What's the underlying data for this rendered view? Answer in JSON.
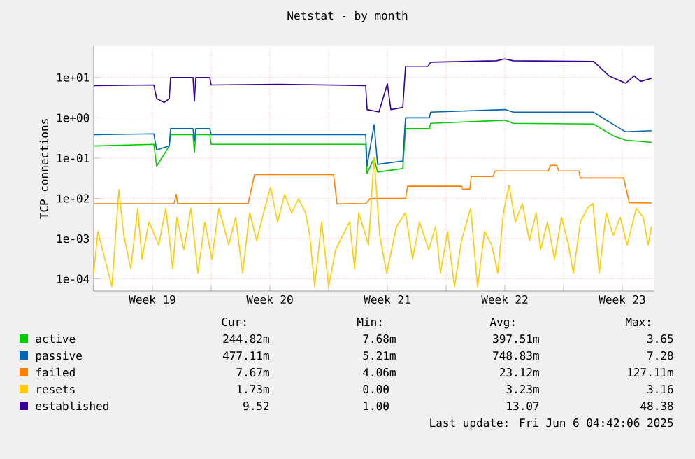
{
  "chart_data": {
    "type": "line",
    "title": "Netstat - by month",
    "ylabel": "TCP connections",
    "log": "y",
    "grid": true,
    "legend": "bottom",
    "marker": "none",
    "line_style": "solid",
    "xlim": [
      "2025-05-05T00:00",
      "2025-06-07T10:00"
    ],
    "ylim": [
      5e-05,
      60
    ],
    "xticks": [
      {
        "value": "2025-05-05T00:00",
        "label": null
      },
      {
        "value": "2025-05-08T12:00",
        "label": "Week 19"
      },
      {
        "value": "2025-05-12T00:00",
        "label": null
      },
      {
        "value": "2025-05-15T12:00",
        "label": "Week 20"
      },
      {
        "value": "2025-05-19T00:00",
        "label": null
      },
      {
        "value": "2025-05-22T12:00",
        "label": "Week 21"
      },
      {
        "value": "2025-05-26T00:00",
        "label": null
      },
      {
        "value": "2025-05-29T12:00",
        "label": "Week 22"
      },
      {
        "value": "2025-06-02T00:00",
        "label": null
      },
      {
        "value": "2025-06-05T12:00",
        "label": "Week 23"
      }
    ],
    "yticks": [
      {
        "value": 0.0001,
        "label": "1e-04"
      },
      {
        "value": 0.001,
        "label": "1e-03"
      },
      {
        "value": 0.01,
        "label": "1e-02"
      },
      {
        "value": 0.1,
        "label": "1e-01"
      },
      {
        "value": 1,
        "label": "1e+00"
      },
      {
        "value": 10,
        "label": "1e+01"
      }
    ],
    "series": [
      {
        "name": "active",
        "color": "#00cc00",
        "x": [
          "2025-05-05T00:00",
          "2025-05-08T14:00",
          "2025-05-08T18:00",
          "2025-05-09T12:00",
          "2025-05-09T14:00",
          "2025-05-10T22:00",
          "2025-05-11T00:00",
          "2025-05-11T02:00",
          "2025-05-11T22:00",
          "2025-05-12T00:00",
          "2025-05-21T05:00",
          "2025-05-21T07:00",
          "2025-05-21T17:00",
          "2025-05-21T22:00",
          "2025-05-23T10:00",
          "2025-05-23T14:00",
          "2025-05-25T00:00",
          "2025-05-25T02:00",
          "2025-05-29T12:00",
          "2025-05-30T00:00",
          "2025-06-03T19:00",
          "2025-06-05T00:00",
          "2025-06-05T17:00",
          "2025-06-07T06:00"
        ],
        "values": [
          0.2,
          0.22,
          0.063,
          0.2,
          0.38,
          0.38,
          0.14,
          0.38,
          0.38,
          0.22,
          0.22,
          0.042,
          0.1,
          0.045,
          0.055,
          0.54,
          0.54,
          0.73,
          0.87,
          0.73,
          0.7,
          0.35,
          0.28,
          0.245
        ]
      },
      {
        "name": "passive",
        "color": "#0066b3",
        "x": [
          "2025-05-05T00:00",
          "2025-05-08T14:00",
          "2025-05-08T18:00",
          "2025-05-09T12:00",
          "2025-05-09T14:00",
          "2025-05-10T22:00",
          "2025-05-11T00:00",
          "2025-05-11T02:00",
          "2025-05-11T22:00",
          "2025-05-12T00:00",
          "2025-05-21T05:00",
          "2025-05-21T07:00",
          "2025-05-21T17:00",
          "2025-05-21T22:00",
          "2025-05-23T10:00",
          "2025-05-23T14:00",
          "2025-05-25T00:00",
          "2025-05-25T02:00",
          "2025-05-29T12:00",
          "2025-05-30T00:00",
          "2025-06-03T19:00",
          "2025-06-04T12:00",
          "2025-06-05T00:00",
          "2025-06-05T17:00",
          "2025-06-07T06:00"
        ],
        "values": [
          0.38,
          0.4,
          0.16,
          0.2,
          0.54,
          0.54,
          0.26,
          0.54,
          0.54,
          0.38,
          0.38,
          0.065,
          0.67,
          0.07,
          0.085,
          1.0,
          1.0,
          1.38,
          1.6,
          1.38,
          1.38,
          0.9,
          0.67,
          0.45,
          0.48
        ]
      },
      {
        "name": "failed",
        "color": "#ff8000",
        "x": [
          "2025-05-05T00:00",
          "2025-05-09T19:00",
          "2025-05-09T22:00",
          "2025-05-10T00:00",
          "2025-05-14T05:00",
          "2025-05-14T14:00",
          "2025-05-19T07:00",
          "2025-05-19T12:00",
          "2025-05-21T05:00",
          "2025-05-21T12:00",
          "2025-05-23T14:00",
          "2025-05-23T17:00",
          "2025-05-26T22:00",
          "2025-05-27T00:00",
          "2025-05-27T10:00",
          "2025-05-27T12:00",
          "2025-05-28T19:00",
          "2025-05-28T22:00",
          "2025-06-01T02:00",
          "2025-06-01T05:00",
          "2025-06-01T14:00",
          "2025-06-01T17:00",
          "2025-06-02T22:00",
          "2025-06-03T00:00",
          "2025-06-05T14:00",
          "2025-06-05T22:00",
          "2025-06-07T06:00"
        ],
        "values": [
          0.0074,
          0.0075,
          0.0126,
          0.0075,
          0.0075,
          0.039,
          0.039,
          0.0073,
          0.0075,
          0.01,
          0.01,
          0.02,
          0.02,
          0.017,
          0.017,
          0.035,
          0.035,
          0.048,
          0.048,
          0.066,
          0.066,
          0.048,
          0.048,
          0.032,
          0.032,
          0.0079,
          0.0077
        ]
      },
      {
        "name": "resets",
        "color": "#ffcc00",
        "x": [
          "2025-05-05T00:00",
          "2025-05-05T06:00",
          "2025-05-05T16:00",
          "2025-05-06T02:00",
          "2025-05-06T12:00",
          "2025-05-06T19:00",
          "2025-05-07T05:00",
          "2025-05-07T15:00",
          "2025-05-07T21:00",
          "2025-05-08T07:00",
          "2025-05-08T21:00",
          "2025-05-09T07:00",
          "2025-05-09T17:00",
          "2025-05-09T23:00",
          "2025-05-10T09:00",
          "2025-05-10T19:00",
          "2025-05-11T05:00",
          "2025-05-11T15:00",
          "2025-05-12T01:00",
          "2025-05-12T11:00",
          "2025-05-13T01:00",
          "2025-05-13T11:00",
          "2025-05-13T21:00",
          "2025-05-14T07:00",
          "2025-05-14T17:00",
          "2025-05-15T03:00",
          "2025-05-15T13:00",
          "2025-05-15T23:00",
          "2025-05-16T09:00",
          "2025-05-16T19:00",
          "2025-05-17T05:00",
          "2025-05-17T15:00",
          "2025-05-17T21:00",
          "2025-05-18T04:00",
          "2025-05-18T14:00",
          "2025-05-19T00:00",
          "2025-05-19T10:00",
          "2025-05-19T23:00",
          "2025-05-20T06:00",
          "2025-05-20T13:00",
          "2025-05-20T19:00",
          "2025-05-21T09:00",
          "2025-05-21T17:00",
          "2025-05-22T01:00",
          "2025-05-22T11:00",
          "2025-05-23T01:00",
          "2025-05-23T14:00",
          "2025-05-24T00:00",
          "2025-05-24T10:00",
          "2025-05-24T23:00",
          "2025-05-25T09:00",
          "2025-05-25T16:00",
          "2025-05-26T02:00",
          "2025-05-26T12:00",
          "2025-05-26T22:00",
          "2025-05-27T11:00",
          "2025-05-27T21:00",
          "2025-05-28T07:00",
          "2025-05-28T17:00",
          "2025-05-29T02:00",
          "2025-05-29T10:00",
          "2025-05-29T18:00",
          "2025-05-30T03:00",
          "2025-05-30T13:00",
          "2025-05-30T23:00",
          "2025-05-31T09:00",
          "2025-05-31T15:00",
          "2025-06-01T01:00",
          "2025-06-01T11:00",
          "2025-06-01T21:00",
          "2025-06-02T07:00",
          "2025-06-02T14:00",
          "2025-06-03T00:00",
          "2025-06-03T10:00",
          "2025-06-03T18:00",
          "2025-06-04T03:00",
          "2025-06-04T13:00",
          "2025-06-04T23:00",
          "2025-06-05T09:00",
          "2025-06-05T19:00",
          "2025-06-06T08:00",
          "2025-06-06T18:00",
          "2025-06-07T01:00",
          "2025-06-07T06:00"
        ],
        "values": [
          0.00014,
          0.0015,
          0.00031,
          6.4e-05,
          0.0165,
          0.0012,
          0.00018,
          0.0057,
          0.00031,
          0.0026,
          0.0007,
          0.0057,
          0.00018,
          0.0034,
          0.00053,
          0.0057,
          0.00014,
          0.0026,
          0.00031,
          0.0057,
          0.0007,
          0.0034,
          0.00014,
          0.0044,
          0.0009,
          0.0044,
          0.0189,
          0.0026,
          0.0127,
          0.0044,
          0.0097,
          0.0044,
          0.0012,
          6.4e-05,
          0.0026,
          6.4e-05,
          0.00053,
          0.0015,
          0.0026,
          0.00018,
          0.0044,
          0.0007,
          0.105,
          0.0012,
          0.00014,
          0.002,
          0.0044,
          0.00031,
          0.0026,
          0.00053,
          0.002,
          0.00014,
          0.0015,
          6.4e-05,
          0.0009,
          0.0057,
          6.4e-05,
          0.0015,
          0.0007,
          0.00014,
          0.0044,
          0.0215,
          0.0026,
          0.0075,
          0.0009,
          0.0044,
          0.00053,
          0.0026,
          0.00031,
          0.0034,
          0.0007,
          0.00014,
          0.0026,
          0.0057,
          0.0075,
          0.00014,
          0.0044,
          0.0012,
          0.0034,
          0.0007,
          0.0057,
          0.0034,
          0.0007,
          0.002
        ]
      },
      {
        "name": "established",
        "color": "#330099",
        "x": [
          "2025-05-05T00:00",
          "2025-05-08T14:00",
          "2025-05-08T18:00",
          "2025-05-09T05:00",
          "2025-05-09T12:00",
          "2025-05-09T14:00",
          "2025-05-10T22:00",
          "2025-05-11T00:00",
          "2025-05-11T02:00",
          "2025-05-11T22:00",
          "2025-05-12T00:00",
          "2025-05-16T00:00",
          "2025-05-21T05:00",
          "2025-05-21T07:00",
          "2025-05-22T00:00",
          "2025-05-22T12:00",
          "2025-05-22T17:00",
          "2025-05-23T10:00",
          "2025-05-23T14:00",
          "2025-05-24T22:00",
          "2025-05-25T02:00",
          "2025-05-29T00:00",
          "2025-05-29T12:00",
          "2025-05-30T00:00",
          "2025-06-03T19:00",
          "2025-06-04T17:00",
          "2025-06-05T17:00",
          "2025-06-06T05:00",
          "2025-06-06T14:00",
          "2025-06-07T06:00"
        ],
        "values": [
          6.3,
          6.5,
          3.0,
          2.4,
          3.0,
          10,
          10,
          2.6,
          10,
          10,
          6.5,
          6.8,
          6.3,
          1.6,
          1.4,
          7,
          1.6,
          1.8,
          19,
          19,
          24,
          26,
          29,
          26,
          25,
          11,
          7.2,
          11,
          8,
          9.52
        ]
      }
    ],
    "annotations": [
      "Cur:",
      "Min:",
      "Avg:",
      "Max:",
      "244.82m",
      "7.68m",
      "397.51m",
      "3.65",
      "477.11m",
      "5.21m",
      "748.83m",
      "7.28",
      "7.67m",
      "4.06m",
      "23.12m",
      "127.11m",
      "1.73m",
      "0.00",
      "3.23m",
      "3.16",
      "9.52",
      "1.00",
      "13.07",
      "48.38",
      "Last update: Fri Jun  6 04:42:06 2025"
    ]
  }
}
